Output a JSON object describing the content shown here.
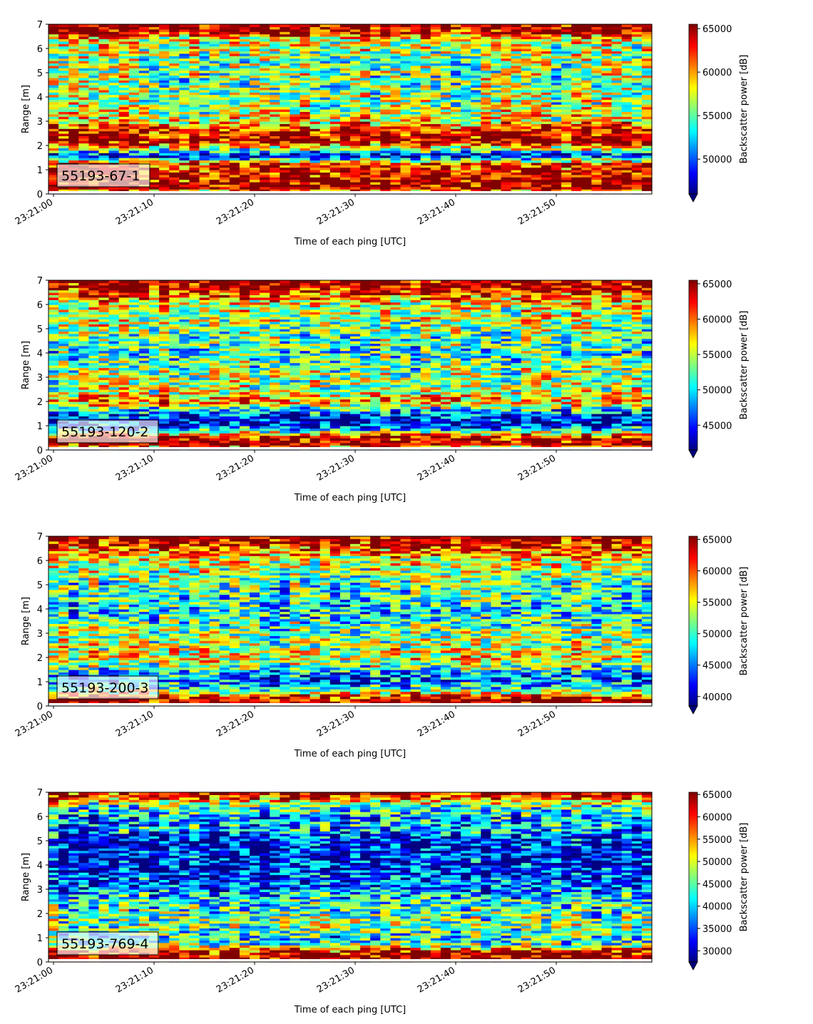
{
  "chart_data": [
    {
      "type": "heatmap",
      "label": "55193-67-1",
      "xlabel": "Time of each ping [UTC]",
      "ylabel": "Range [m]",
      "colorbar_label": "Backscatter power [dB]",
      "x_ticks": [
        "23:21:00",
        "23:21:10",
        "23:21:20",
        "23:21:30",
        "23:21:40",
        "23:21:50"
      ],
      "y_ticks": [
        0,
        1,
        2,
        3,
        4,
        5,
        6,
        7
      ],
      "ylim": [
        0,
        7
      ],
      "clim": [
        46000,
        65500
      ],
      "colorbar_ticks": [
        50000,
        55000,
        60000,
        65000
      ],
      "colormap": "jet",
      "n_pings": 60,
      "profile": [
        [
          0.0,
          0.0
        ],
        [
          0.2,
          1.0
        ],
        [
          0.4,
          0.96
        ],
        [
          0.7,
          0.92
        ],
        [
          1.0,
          0.9
        ],
        [
          1.25,
          0.85
        ],
        [
          1.4,
          0.5
        ],
        [
          1.6,
          0.08
        ],
        [
          1.9,
          0.6
        ],
        [
          2.2,
          0.95
        ],
        [
          2.6,
          0.9
        ],
        [
          3.0,
          0.65
        ],
        [
          3.5,
          0.55
        ],
        [
          4.5,
          0.5
        ],
        [
          5.5,
          0.5
        ],
        [
          6.4,
          0.62
        ],
        [
          6.7,
          0.95
        ],
        [
          7.0,
          1.0
        ]
      ]
    },
    {
      "type": "heatmap",
      "label": "55193-120-2",
      "xlabel": "Time of each ping [UTC]",
      "ylabel": "Range [m]",
      "colorbar_label": "Backscatter power [dB]",
      "x_ticks": [
        "23:21:00",
        "23:21:10",
        "23:21:20",
        "23:21:30",
        "23:21:40",
        "23:21:50"
      ],
      "y_ticks": [
        0,
        1,
        2,
        3,
        4,
        5,
        6,
        7
      ],
      "ylim": [
        0,
        7
      ],
      "clim": [
        41500,
        65500
      ],
      "colorbar_ticks": [
        45000,
        50000,
        55000,
        60000,
        65000
      ],
      "colormap": "jet",
      "n_pings": 60,
      "profile": [
        [
          0.0,
          0.0
        ],
        [
          0.2,
          1.0
        ],
        [
          0.5,
          0.96
        ],
        [
          0.7,
          0.6
        ],
        [
          1.0,
          0.15
        ],
        [
          1.3,
          0.12
        ],
        [
          1.6,
          0.3
        ],
        [
          2.0,
          0.75
        ],
        [
          2.5,
          0.55
        ],
        [
          3.0,
          0.55
        ],
        [
          4.0,
          0.4
        ],
        [
          5.0,
          0.5
        ],
        [
          6.0,
          0.6
        ],
        [
          6.5,
          0.85
        ],
        [
          7.0,
          1.0
        ]
      ]
    },
    {
      "type": "heatmap",
      "label": "55193-200-3",
      "xlabel": "Time of each ping [UTC]",
      "ylabel": "Range [m]",
      "colorbar_label": "Backscatter power [dB]",
      "x_ticks": [
        "23:21:00",
        "23:21:10",
        "23:21:20",
        "23:21:30",
        "23:21:40",
        "23:21:50"
      ],
      "y_ticks": [
        0,
        1,
        2,
        3,
        4,
        5,
        6,
        7
      ],
      "ylim": [
        0,
        7
      ],
      "clim": [
        38500,
        65500
      ],
      "colorbar_ticks": [
        40000,
        45000,
        50000,
        55000,
        60000,
        65000
      ],
      "colormap": "jet",
      "n_pings": 60,
      "profile": [
        [
          0.0,
          0.0
        ],
        [
          0.15,
          0.98
        ],
        [
          0.35,
          0.92
        ],
        [
          0.5,
          0.7
        ],
        [
          0.8,
          0.35
        ],
        [
          1.2,
          0.2
        ],
        [
          1.5,
          0.4
        ],
        [
          2.0,
          0.62
        ],
        [
          2.5,
          0.55
        ],
        [
          3.0,
          0.5
        ],
        [
          4.0,
          0.35
        ],
        [
          5.0,
          0.45
        ],
        [
          6.0,
          0.6
        ],
        [
          6.5,
          0.8
        ],
        [
          7.0,
          1.0
        ]
      ]
    },
    {
      "type": "heatmap",
      "label": "55193-769-4",
      "xlabel": "Time of each ping [UTC]",
      "ylabel": "Range [m]",
      "colorbar_label": "Backscatter power [dB]",
      "x_ticks": [
        "23:21:00",
        "23:21:10",
        "23:21:20",
        "23:21:30",
        "23:21:40",
        "23:21:50"
      ],
      "y_ticks": [
        0,
        1,
        2,
        3,
        4,
        5,
        6,
        7
      ],
      "ylim": [
        0,
        7
      ],
      "clim": [
        27500,
        65500
      ],
      "colorbar_ticks": [
        30000,
        35000,
        40000,
        45000,
        50000,
        55000,
        60000,
        65000
      ],
      "colormap": "jet",
      "n_pings": 60,
      "profile": [
        [
          0.0,
          0.6
        ],
        [
          0.1,
          1.0
        ],
        [
          0.3,
          0.95
        ],
        [
          0.5,
          0.85
        ],
        [
          0.7,
          0.45
        ],
        [
          1.0,
          0.35
        ],
        [
          1.5,
          0.5
        ],
        [
          2.0,
          0.45
        ],
        [
          2.5,
          0.4
        ],
        [
          3.0,
          0.25
        ],
        [
          4.0,
          0.12
        ],
        [
          5.0,
          0.15
        ],
        [
          5.5,
          0.3
        ],
        [
          6.0,
          0.3
        ],
        [
          6.5,
          0.5
        ],
        [
          6.8,
          0.85
        ],
        [
          7.0,
          0.9
        ]
      ]
    }
  ]
}
